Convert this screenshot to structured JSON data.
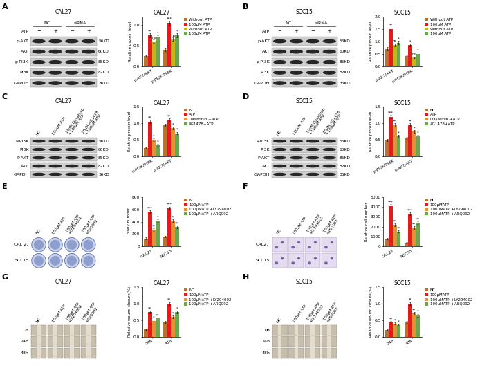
{
  "chart_data": [
    {
      "type": "bar",
      "title": "CAL27",
      "y_label": "Relative protein level",
      "categories": [
        "p-AKT/AKT",
        "p-PI3K/PI3K"
      ],
      "series": [
        {
          "name": "Without ATP",
          "color": "#b8732e",
          "values": [
            0.25,
            0.4
          ],
          "errors": [
            0.02,
            0.03
          ],
          "annotations": [
            null,
            null
          ]
        },
        {
          "name": "100μM ATP",
          "color": "#e41a1c",
          "values": [
            0.75,
            1.05
          ],
          "errors": [
            0.05,
            0.05
          ],
          "annotations": [
            "**",
            "***"
          ]
        },
        {
          "name": "Without ATP",
          "color": "#c9b21a",
          "values": [
            0.6,
            0.65
          ],
          "errors": [
            0.04,
            0.04
          ],
          "annotations": [
            "ns",
            "ns"
          ]
        },
        {
          "name": "100μM ATP",
          "color": "#6aa84f",
          "values": [
            0.7,
            0.75
          ],
          "errors": [
            0.04,
            0.05
          ],
          "annotations": [
            "*",
            "*"
          ]
        }
      ],
      "ylim": [
        0,
        1.2
      ],
      "yticks": [
        {
          "value": 0,
          "label": "0.0"
        },
        {
          "value": 0.5,
          "label": "0.5"
        },
        {
          "value": 1.0,
          "label": "1.0"
        }
      ],
      "legend": "right"
    },
    {
      "type": "bar",
      "title": "SCC15",
      "y_label": "Relative protein level",
      "categories": [
        "p-AKT/AKT",
        "p-PI3K/PI3K"
      ],
      "series": [
        {
          "name": "Without ATP",
          "color": "#b8732e",
          "values": [
            0.7,
            0.4
          ],
          "errors": [
            0.08,
            0.03
          ],
          "annotations": [
            null,
            null
          ]
        },
        {
          "name": "100μM ATP",
          "color": "#e41a1c",
          "values": [
            1.5,
            0.85
          ],
          "errors": [
            0.06,
            0.05
          ],
          "annotations": [
            "**",
            "*"
          ]
        },
        {
          "name": "Without ATP",
          "color": "#c9b21a",
          "values": [
            0.85,
            0.35
          ],
          "errors": [
            0.06,
            0.03
          ],
          "annotations": [
            "ns",
            "ns"
          ]
        },
        {
          "name": "100μM ATP",
          "color": "#6aa84f",
          "values": [
            0.95,
            0.5
          ],
          "errors": [
            0.06,
            0.04
          ],
          "annotations": [
            "*",
            "*"
          ]
        }
      ],
      "ylim": [
        0,
        2.0
      ],
      "yticks": [
        {
          "value": 0,
          "label": "0.0"
        },
        {
          "value": 0.5,
          "label": "0.5"
        },
        {
          "value": 1.0,
          "label": "1.0"
        },
        {
          "value": 1.5,
          "label": "1.5"
        },
        {
          "value": 2.0,
          "label": "2.0"
        }
      ],
      "legend": "right"
    },
    {
      "type": "bar",
      "title": "CAL27",
      "y_label": "Relative protein level",
      "categories": [
        "p-PI3K/PI3K",
        "p-AKT/AKT"
      ],
      "series": [
        {
          "name": "NC",
          "color": "#b8732e",
          "values": [
            0.25,
            0.95
          ],
          "errors": [
            0.02,
            0.04
          ],
          "annotations": [
            null,
            null
          ]
        },
        {
          "name": "ATP",
          "color": "#e41a1c",
          "values": [
            1.05,
            1.1
          ],
          "errors": [
            0.05,
            0.05
          ],
          "annotations": [
            "**",
            "**"
          ]
        },
        {
          "name": "Dasatinib +ATP",
          "color": "#e69138",
          "values": [
            0.5,
            0.85
          ],
          "errors": [
            0.04,
            0.04
          ],
          "annotations": [
            "*",
            "*"
          ]
        },
        {
          "name": "AG1478+ATP",
          "color": "#6aa84f",
          "values": [
            0.35,
            0.7
          ],
          "errors": [
            0.03,
            0.04
          ],
          "annotations": [
            "*",
            "*"
          ]
        }
      ],
      "ylim": [
        0,
        1.5
      ],
      "yticks": [
        {
          "value": 0,
          "label": "0.0"
        },
        {
          "value": 0.5,
          "label": "0.5"
        },
        {
          "value": 1.0,
          "label": "1.0"
        },
        {
          "value": 1.5,
          "label": "1.5"
        }
      ],
      "legend": "right"
    },
    {
      "type": "bar",
      "title": "SCC15",
      "y_label": "Relative protein level",
      "categories": [
        "p-PI3K/PI3K",
        "p-AKT/AKT"
      ],
      "series": [
        {
          "name": "NC",
          "color": "#b8732e",
          "values": [
            0.5,
            0.55
          ],
          "errors": [
            0.03,
            0.03
          ],
          "annotations": [
            null,
            null
          ]
        },
        {
          "name": "ATP",
          "color": "#e41a1c",
          "values": [
            1.2,
            0.95
          ],
          "errors": [
            0.05,
            0.05
          ],
          "annotations": [
            "***",
            "**"
          ]
        },
        {
          "name": "Dasatinib +ATP",
          "color": "#e69138",
          "values": [
            0.95,
            0.75
          ],
          "errors": [
            0.05,
            0.04
          ],
          "annotations": [
            "**",
            "*"
          ]
        },
        {
          "name": "AG1478+ATP",
          "color": "#6aa84f",
          "values": [
            0.6,
            0.6
          ],
          "errors": [
            0.04,
            0.04
          ],
          "annotations": [
            "*",
            "*"
          ]
        }
      ],
      "ylim": [
        0,
        1.5
      ],
      "yticks": [
        {
          "value": 0,
          "label": "0.0"
        },
        {
          "value": 0.5,
          "label": "0.5"
        },
        {
          "value": 1.0,
          "label": "1.0"
        },
        {
          "value": 1.5,
          "label": "1.5"
        }
      ],
      "legend": "right"
    },
    {
      "type": "bar",
      "y_label": "Colony number",
      "categories": [
        "CAL27",
        "SCC15"
      ],
      "series": [
        {
          "name": "NC",
          "color": "#b8732e",
          "values": [
            130,
            160
          ],
          "errors": [
            15,
            15
          ],
          "annotations": [
            null,
            null
          ]
        },
        {
          "name": "100μMATP",
          "color": "#e41a1c",
          "values": [
            560,
            620
          ],
          "errors": [
            25,
            25
          ],
          "annotations": [
            "***",
            "***"
          ]
        },
        {
          "name": "100μMATP +LY294002",
          "color": "#e69138",
          "values": [
            270,
            420
          ],
          "errors": [
            20,
            20
          ],
          "annotations": [
            "**",
            "**"
          ]
        },
        {
          "name": "100μMATP +ARQ092",
          "color": "#6aa84f",
          "values": [
            420,
            320
          ],
          "errors": [
            20,
            20
          ],
          "annotations": [
            "*",
            "**"
          ]
        }
      ],
      "ylim": [
        0,
        800
      ],
      "yticks": [
        0,
        200,
        400,
        600,
        800
      ],
      "legend": "right"
    },
    {
      "type": "bar",
      "y_label": "Relative cell number",
      "categories": [
        "CAL27",
        "SCC15"
      ],
      "series": [
        {
          "name": "NC",
          "color": "#b8732e",
          "values": [
            800,
            400
          ],
          "errors": [
            80,
            60
          ],
          "annotations": [
            null,
            null
          ]
        },
        {
          "name": "100μMATP",
          "color": "#e41a1c",
          "values": [
            4100,
            3300
          ],
          "errors": [
            150,
            150
          ],
          "annotations": [
            "***",
            "***"
          ]
        },
        {
          "name": "100μMATP +LY294002",
          "color": "#e69138",
          "values": [
            2200,
            1900
          ],
          "errors": [
            120,
            120
          ],
          "annotations": [
            "**",
            "**"
          ]
        },
        {
          "name": "100μMATP +ARQ092",
          "color": "#6aa84f",
          "values": [
            1500,
            2400
          ],
          "errors": [
            100,
            120
          ],
          "annotations": [
            "**",
            "**"
          ]
        }
      ],
      "ylim": [
        0,
        5000
      ],
      "yticks": [
        0,
        1000,
        2000,
        3000,
        4000,
        5000
      ],
      "legend": "right"
    },
    {
      "type": "bar",
      "title": "CAL27",
      "y_label": "Relative wound closure(%)",
      "categories": [
        "24h",
        "48h"
      ],
      "series": [
        {
          "name": "NC",
          "color": "#b8732e",
          "values": [
            0.22,
            0.45
          ],
          "errors": [
            0.02,
            0.03
          ],
          "annotations": [
            null,
            null
          ]
        },
        {
          "name": "100μMATP",
          "color": "#e41a1c",
          "values": [
            0.75,
            1.0
          ],
          "errors": [
            0.04,
            0.05
          ],
          "annotations": [
            "**",
            "**"
          ]
        },
        {
          "name": "100μMATP +LY294002",
          "color": "#e69138",
          "values": [
            0.48,
            0.6
          ],
          "errors": [
            0.03,
            0.04
          ],
          "annotations": [
            "*",
            "*"
          ]
        },
        {
          "name": "100μMATP +ARQ092",
          "color": "#6aa84f",
          "values": [
            0.55,
            0.75
          ],
          "errors": [
            0.03,
            0.04
          ],
          "annotations": [
            "**",
            "*"
          ]
        }
      ],
      "ylim": [
        0,
        1.5
      ],
      "yticks": [
        {
          "value": 0,
          "label": "0.0"
        },
        {
          "value": 0.5,
          "label": "0.5"
        },
        {
          "value": 1.0,
          "label": "1.0"
        },
        {
          "value": 1.5,
          "label": "1.5"
        }
      ],
      "legend": "right"
    },
    {
      "type": "bar",
      "title": "SCC15",
      "y_label": "Relative wound closure(%)",
      "categories": [
        "24h",
        "48h"
      ],
      "series": [
        {
          "name": "NC",
          "color": "#b8732e",
          "values": [
            0.2,
            0.45
          ],
          "errors": [
            0.02,
            0.03
          ],
          "annotations": [
            null,
            null
          ]
        },
        {
          "name": "100μMATP",
          "color": "#e41a1c",
          "values": [
            0.45,
            1.0
          ],
          "errors": [
            0.03,
            0.05
          ],
          "annotations": [
            "**",
            "**"
          ]
        },
        {
          "name": "100μMATP +LY294002",
          "color": "#e69138",
          "values": [
            0.4,
            0.7
          ],
          "errors": [
            0.03,
            0.04
          ],
          "annotations": [
            "*",
            "**"
          ]
        },
        {
          "name": "100μMATP +ARQ092",
          "color": "#6aa84f",
          "values": [
            0.35,
            0.65
          ],
          "errors": [
            0.03,
            0.04
          ],
          "annotations": [
            "*",
            "*"
          ]
        }
      ],
      "ylim": [
        0,
        1.5
      ],
      "yticks": [
        {
          "value": 0,
          "label": "0.0"
        },
        {
          "value": 0.5,
          "label": "0.5"
        },
        {
          "value": 1.0,
          "label": "1.0"
        },
        {
          "value": 1.5,
          "label": "1.5"
        }
      ],
      "legend": "right"
    }
  ],
  "panels": [
    {
      "label": "A",
      "title": "CAL27",
      "groups": [
        "NC",
        "siRNA"
      ],
      "treatment": "ATP",
      "signs": [
        "−",
        "+",
        "−",
        "+"
      ],
      "bands": [
        {
          "name": "p-AKT",
          "size": "56KD"
        },
        {
          "name": "AKT",
          "size": "60KD"
        },
        {
          "name": "p-PI3K",
          "size": "85KD"
        },
        {
          "name": "PI3K",
          "size": "82KD"
        },
        {
          "name": "GAPDH",
          "size": "36KD"
        }
      ]
    },
    {
      "label": "B",
      "title": "SCC15",
      "groups": [
        "NC",
        "siRNA"
      ],
      "treatment": "ATP",
      "signs": [
        "−",
        "+",
        "−",
        "+"
      ],
      "bands": [
        {
          "name": "p-AKT",
          "size": "56KD"
        },
        {
          "name": "AKT",
          "size": "60KD"
        },
        {
          "name": "p-PI3K",
          "size": "85KD"
        },
        {
          "name": "PI3K",
          "size": "82KD"
        },
        {
          "name": "GAPDH",
          "size": "36KD"
        }
      ]
    },
    {
      "label": "C",
      "title": "CAL27",
      "columns": [
        [
          "NC"
        ],
        [
          "100μM ATP"
        ],
        [
          "10nM Dasatinib",
          "+100μM ATP"
        ],
        [
          "10μM AG1478",
          "+100μM ATP"
        ]
      ],
      "bands": [
        {
          "name": "P-PI3K",
          "size": "56KD"
        },
        {
          "name": "PI3K",
          "size": "60KD"
        },
        {
          "name": "P-AKT",
          "size": "85KD"
        },
        {
          "name": "AKT",
          "size": "82KD"
        },
        {
          "name": "GAPDH",
          "size": "36KD"
        }
      ]
    },
    {
      "label": "D",
      "title": "SCC15",
      "columns": [
        [
          "NC"
        ],
        [
          "100μM ATP"
        ],
        [
          "10nM Dasatinib",
          "+100μM ATP"
        ],
        [
          "10μM AG1478",
          "+100μM ATP"
        ]
      ],
      "bands": [
        {
          "name": "P-PI3K",
          "size": "56KD"
        },
        {
          "name": "PI3K",
          "size": "60KD"
        },
        {
          "name": "P-AKT",
          "size": "85KD"
        },
        {
          "name": "AKT",
          "size": "82KD"
        },
        {
          "name": "GAPDH",
          "size": "36KD"
        }
      ]
    },
    {
      "label": "E",
      "columns": [
        [
          "NC"
        ],
        [
          "100μM ATP"
        ],
        [
          "100μM ATP",
          "+LY294002"
        ],
        [
          "100μM ATP",
          "+ARQ092"
        ]
      ],
      "rows": [
        "CAL 27",
        "SCC15"
      ]
    },
    {
      "label": "F",
      "columns": [
        [
          "NC"
        ],
        [
          "100μM ATP"
        ],
        [
          "100μM ATP",
          "+LY294002"
        ],
        [
          "100μM ATP",
          "+ARQ092"
        ]
      ],
      "rows": [
        "CAL27",
        "SCC15"
      ]
    },
    {
      "label": "G",
      "title": "CAL27",
      "columns": [
        [
          "NC"
        ],
        [
          "100μM ATP"
        ],
        [
          "100μM ATP",
          "+LY294002"
        ],
        [
          "100μM ATP",
          "+ARQ092"
        ]
      ],
      "rows": [
        "0h",
        "24h",
        "48h"
      ]
    },
    {
      "label": "H",
      "title": "SCC15",
      "columns": [
        [
          "NC"
        ],
        [
          "100μM ATP"
        ],
        [
          "100μM ATP",
          "+LY294002"
        ],
        [
          "100μM ATP",
          "+ARQ092"
        ]
      ],
      "rows": [
        "0h",
        "24h",
        "48h"
      ]
    }
  ]
}
